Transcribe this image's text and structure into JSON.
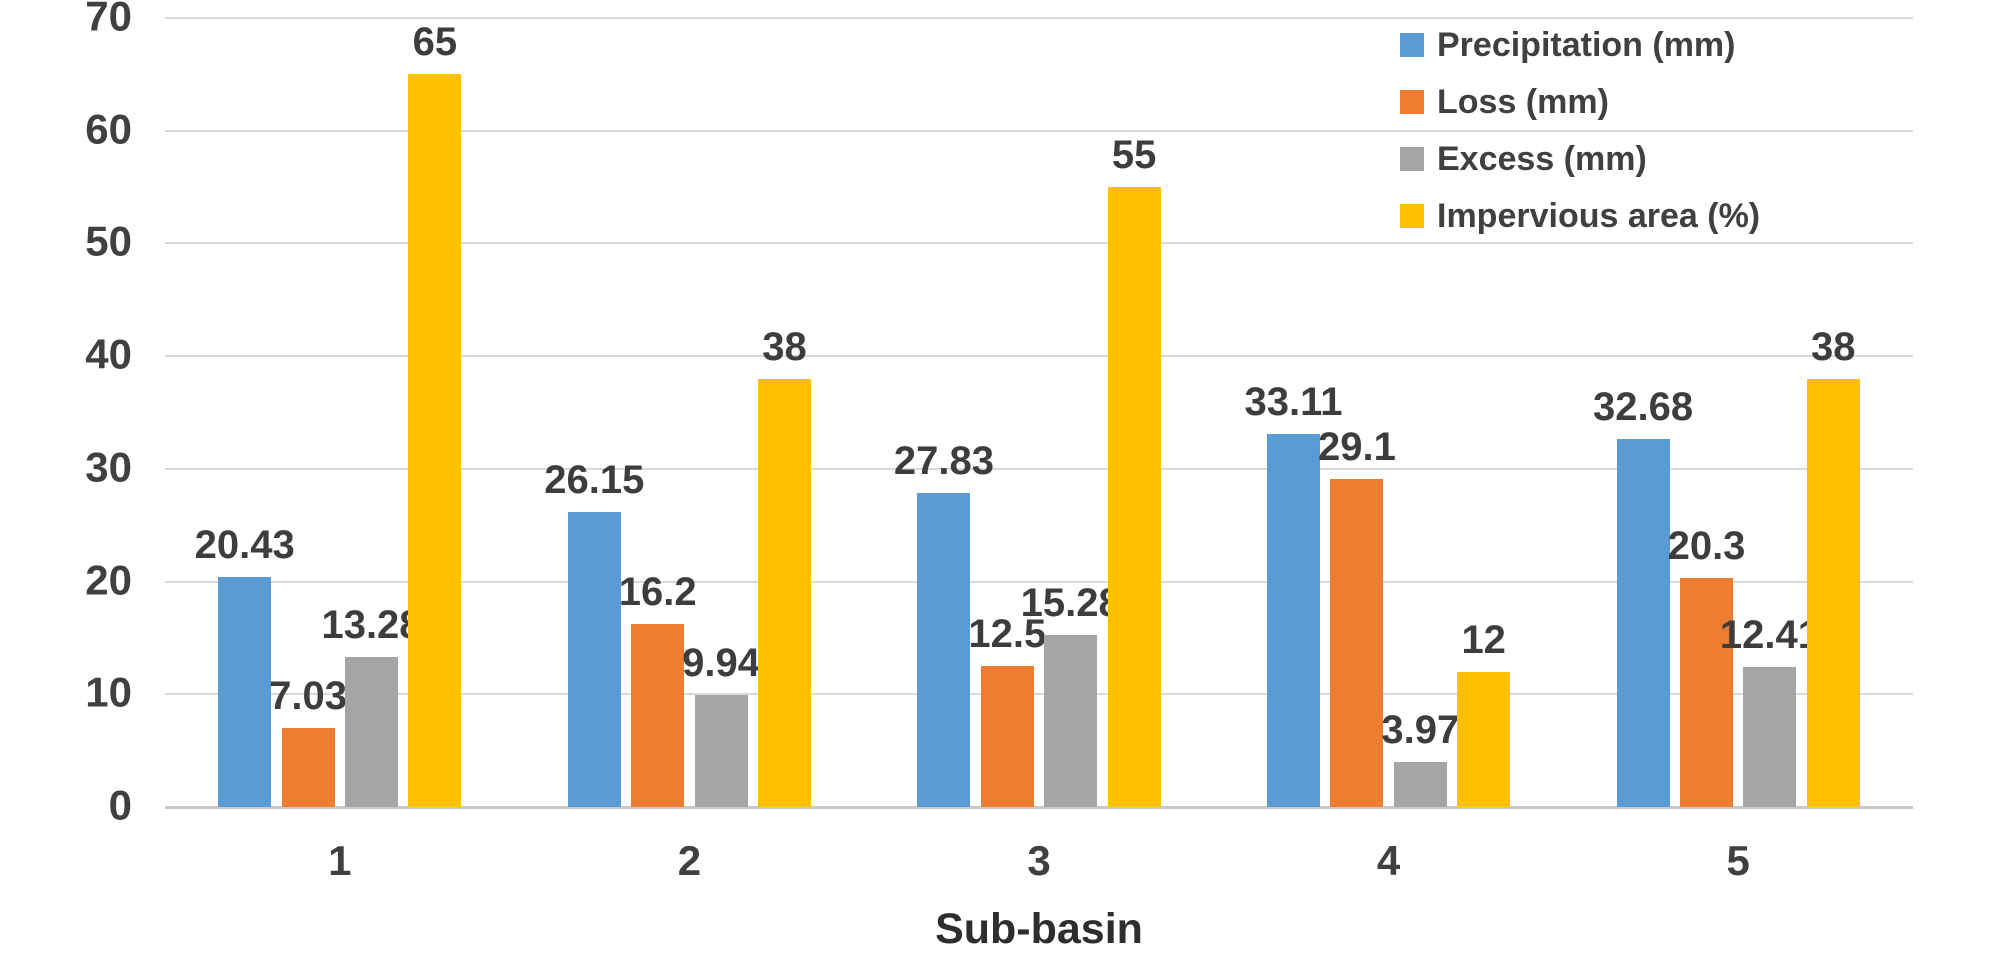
{
  "chart_data": {
    "type": "bar",
    "title": "",
    "xlabel": "Sub-basin",
    "ylabel": "",
    "categories": [
      "1",
      "2",
      "3",
      "4",
      "5"
    ],
    "series": [
      {
        "name": "Precipitation (mm)",
        "color": "#5B9BD5",
        "values": [
          20.43,
          26.15,
          27.83,
          33.11,
          32.68
        ],
        "labels": [
          "20.43",
          "26.15",
          "27.83",
          "33.11",
          "32.68"
        ]
      },
      {
        "name": "Loss (mm)",
        "color": "#ED7D31",
        "values": [
          7.03,
          16.2,
          12.5,
          29.1,
          20.3
        ],
        "labels": [
          "7.03",
          "16.2",
          "12.5",
          "29.1",
          "20.3"
        ]
      },
      {
        "name": "Excess (mm)",
        "color": "#A5A5A5",
        "values": [
          13.28,
          9.94,
          15.28,
          3.97,
          12.41
        ],
        "labels": [
          "13.28",
          "9.94",
          "15.28",
          "3.97",
          "12.41"
        ]
      },
      {
        "name": "Impervious area (%)",
        "color": "#FFC000",
        "values": [
          65,
          38,
          55,
          12,
          38
        ],
        "labels": [
          "65",
          "38",
          "55",
          "12",
          "38"
        ]
      }
    ],
    "ylim": [
      0,
      70
    ],
    "ytick_step": 10,
    "yticks": [
      "0",
      "10",
      "20",
      "30",
      "40",
      "50",
      "60",
      "70"
    ],
    "grid": true,
    "legend_position": "top-right"
  },
  "colors": {
    "gridline": "#D9D9D9",
    "axis_line": "#C8C8C8",
    "text": "#404040",
    "background": "#FFFFFF"
  }
}
